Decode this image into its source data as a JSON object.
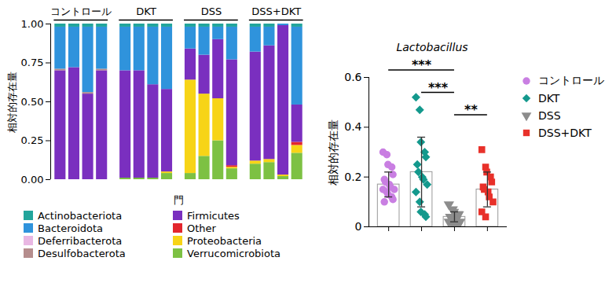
{
  "chart_data": [
    {
      "type": "bar",
      "stacked": true,
      "x_label": "門",
      "y_label": "相対的存在量",
      "categories": [
        null,
        null,
        null,
        null,
        null,
        null,
        null,
        null,
        null,
        null,
        null,
        null,
        null,
        null,
        null,
        null
      ],
      "groups": [
        {
          "name": "コントロール",
          "size": 4
        },
        {
          "name": "DKT",
          "size": 4
        },
        {
          "name": "DSS",
          "size": 4
        },
        {
          "name": "DSS+DKT",
          "size": 4
        }
      ],
      "ylim": [
        0,
        1.0
      ],
      "yticks": [
        {
          "value": 0,
          "label": "0.00"
        },
        {
          "value": 0.25,
          "label": "0.25"
        },
        {
          "value": 0.5,
          "label": "0.50"
        },
        {
          "value": 0.75,
          "label": "0.75"
        },
        {
          "value": 1.0,
          "label": "1.00"
        }
      ],
      "legend": "bottom",
      "series": [
        {
          "name": "Verrucomicrobiota",
          "color": "#7dc143",
          "values": [
            0,
            0,
            0,
            0,
            0.01,
            0.01,
            0.01,
            0.04,
            0.04,
            0.15,
            0.25,
            0.07,
            0.1,
            0.11,
            0.02,
            0.17
          ]
        },
        {
          "name": "Proteobacteria",
          "color": "#f7d417",
          "values": [
            0,
            0,
            0,
            0,
            0,
            0,
            0,
            0.01,
            0.6,
            0.4,
            0.27,
            0.01,
            0.02,
            0.02,
            0.01,
            0.05
          ]
        },
        {
          "name": "Other",
          "color": "#e3262d",
          "values": [
            0,
            0,
            0,
            0,
            0,
            0,
            0,
            0,
            0,
            0,
            0,
            0.01,
            0,
            0,
            0,
            0.02
          ]
        },
        {
          "name": "Firmicutes",
          "color": "#7a2fbf",
          "values": [
            0.7,
            0.72,
            0.55,
            0.7,
            0.69,
            0.69,
            0.6,
            0.53,
            0.2,
            0.25,
            0.38,
            0.68,
            0.7,
            0.73,
            0.96,
            0.24
          ]
        },
        {
          "name": "Desulfobacterota",
          "color": "#b58d8d",
          "values": [
            0.01,
            0,
            0.01,
            0.01,
            0,
            0,
            0,
            0,
            0,
            0,
            0,
            0,
            0,
            0,
            0,
            0
          ]
        },
        {
          "name": "Deferribacterota",
          "color": "#e9b7e3",
          "values": [
            0,
            0,
            0,
            0,
            0,
            0,
            0,
            0,
            0,
            0,
            0,
            0,
            0,
            0,
            0,
            0
          ]
        },
        {
          "name": "Bacteroidota",
          "color": "#2f93dc",
          "values": [
            0.27,
            0.26,
            0.42,
            0.27,
            0.28,
            0.28,
            0.37,
            0.4,
            0.14,
            0.18,
            0.08,
            0.21,
            0.16,
            0.12,
            0.01,
            0.5
          ]
        },
        {
          "name": "Actinobacteriota",
          "color": "#22a59c",
          "values": [
            0.02,
            0.02,
            0.02,
            0.02,
            0.02,
            0.02,
            0.02,
            0.02,
            0.02,
            0.02,
            0.02,
            0.02,
            0.02,
            0.02,
            0,
            0.02
          ]
        }
      ]
    },
    {
      "type": "bar",
      "title": "Lactobacillus",
      "y_label": "相対的存在量",
      "categories": [
        null,
        null,
        null,
        null
      ],
      "ylim": [
        0,
        0.6
      ],
      "yticks": [
        0,
        0.2,
        0.4,
        0.6
      ],
      "legend": "right",
      "series": [
        {
          "name": "コントロール",
          "color": "#c97fe2",
          "marker": "circle",
          "values": [
            0.17,
            null,
            null,
            null
          ],
          "error": [
            0.05,
            null,
            null,
            null
          ],
          "points": [
            0.3,
            0.29,
            0.25,
            0.24,
            0.21,
            0.19,
            0.18,
            0.17,
            0.16,
            0.15,
            0.15,
            0.14,
            0.13,
            0.12,
            0.11,
            0.1
          ]
        },
        {
          "name": "DKT",
          "color": "#14998d",
          "marker": "diamond",
          "values": [
            null,
            0.22,
            null,
            null
          ],
          "error": [
            null,
            0.14,
            null,
            null
          ],
          "points": [
            0.52,
            0.47,
            0.34,
            0.3,
            0.28,
            0.25,
            0.22,
            0.2,
            0.19,
            0.17,
            0.14,
            0.1,
            0.06,
            0.05,
            0.04
          ]
        },
        {
          "name": "DSS",
          "color": "#8c8c8c",
          "marker": "triangle-down",
          "values": [
            null,
            null,
            0.04,
            null
          ],
          "error": [
            null,
            null,
            0.02,
            null
          ],
          "points": [
            0.09,
            0.07,
            0.06,
            0.05,
            0.05,
            0.04,
            0.04,
            0.03,
            0.03,
            0.02,
            0.02,
            0.01,
            0.01,
            0.005
          ]
        },
        {
          "name": "DSS+DKT",
          "color": "#e8312a",
          "marker": "square",
          "values": [
            null,
            null,
            null,
            0.15
          ],
          "error": [
            null,
            null,
            null,
            0.07
          ],
          "points": [
            0.31,
            0.24,
            0.22,
            0.2,
            0.18,
            0.16,
            0.15,
            0.14,
            0.12,
            0.1,
            0.06,
            0.04
          ]
        }
      ],
      "annotations": [
        {
          "from": 0,
          "to": 2,
          "y": 0.63,
          "label": "***"
        },
        {
          "from": 1,
          "to": 2,
          "y": 0.54,
          "label": "***"
        },
        {
          "from": 2,
          "to": 3,
          "y": 0.45,
          "label": "**"
        }
      ]
    }
  ]
}
